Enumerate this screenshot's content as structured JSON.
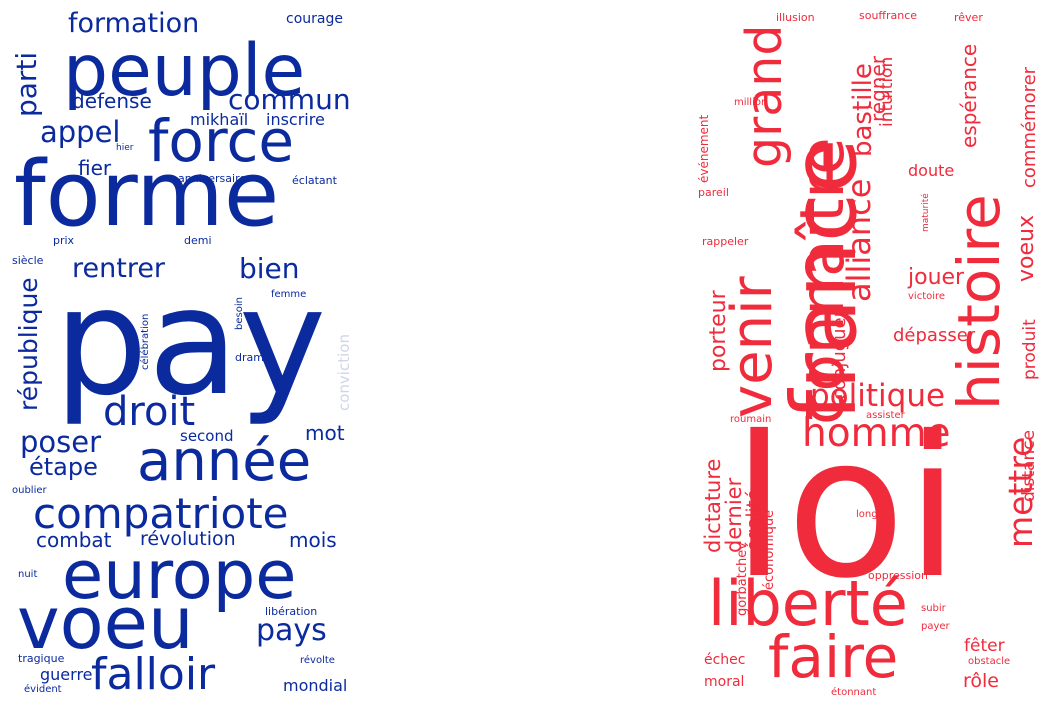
{
  "colors": {
    "blue": "#0a2a9e",
    "red": "#ef2b3c",
    "faint": "#cfd6ea",
    "background": "#ffffff"
  },
  "left_cloud": {
    "words": [
      "peuple",
      "forme",
      "pay",
      "force",
      "europe",
      "voeu",
      "année",
      "compatriote",
      "droit",
      "falloir",
      "formation",
      "commun",
      "appel",
      "rentrer",
      "bien",
      "poser",
      "étape",
      "pays",
      "parti",
      "république",
      "défense",
      "mikhaïl",
      "inscrire",
      "fier",
      "combat",
      "révolution",
      "mois",
      "mot",
      "second",
      "guerre",
      "mondial",
      "courage",
      "hier",
      "anniversaire",
      "éclatant",
      "prix",
      "demi",
      "siècle",
      "femme",
      "célébration",
      "besoin",
      "drame",
      "conviction",
      "oublier",
      "nuit",
      "libération",
      "tragique",
      "révolte",
      "évident"
    ]
  },
  "right_cloud": {
    "words": [
      "loi",
      "france",
      "connaître",
      "histoire",
      "venir",
      "grand",
      "liberté",
      "faire",
      "homme",
      "politique",
      "alliance",
      "mettre",
      "bastille",
      "voeux",
      "espérance",
      "commémorer",
      "régner",
      "intuition",
      "jouer",
      "porteur",
      "conjuguer",
      "dépasser",
      "produit",
      "distance",
      "doute",
      "dictature",
      "dernier",
      "égalité",
      "gorbatchev",
      "économique",
      "fêter",
      "rôle",
      "échec",
      "moral",
      "événement",
      "pareil",
      "rappeler",
      "million",
      "illusion",
      "souffrance",
      "rêver",
      "maturité",
      "victoire",
      "assister",
      "roumain",
      "long",
      "oppression",
      "subir",
      "payer",
      "obstacle",
      "étonnant"
    ]
  }
}
